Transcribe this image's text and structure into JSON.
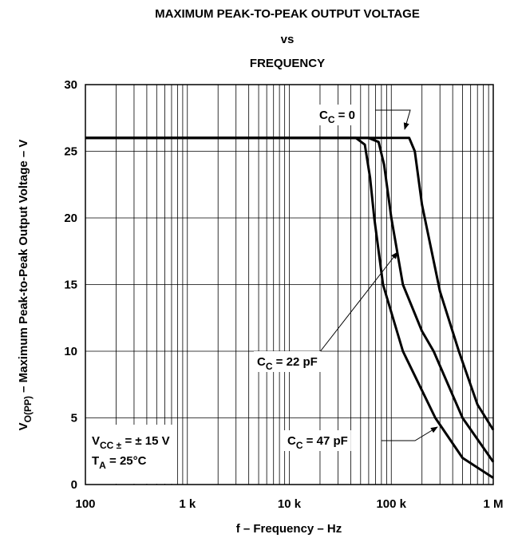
{
  "chart_data": {
    "type": "line",
    "title": [
      "MAXIMUM PEAK-TO-PEAK OUTPUT VOLTAGE",
      "vs",
      "FREQUENCY"
    ],
    "xlabel": "f – Frequency – Hz",
    "ylabel": {
      "base": "V",
      "sub": "O(PP)",
      "rest": " – Maximum Peak-to-Peak Output Voltage – V"
    },
    "xscale": "log",
    "xlim": [
      100,
      1000000
    ],
    "ylim": [
      0,
      30
    ],
    "xticks": [
      100,
      {
        "value": 1000,
        "label": "1 k"
      },
      {
        "value": 10000,
        "label": "10 k"
      },
      {
        "value": 100000,
        "label": "100 k"
      },
      {
        "value": 1000000,
        "label": "1 M"
      }
    ],
    "yticks": [
      0,
      5,
      10,
      15,
      20,
      25,
      30
    ],
    "grid": true,
    "series": [
      {
        "name": {
          "base": "C",
          "sub": "C",
          "rest": " = 0"
        },
        "color": "#000000",
        "x": [
          100,
          10000,
          100000,
          150000,
          170000,
          200000,
          300000,
          460000,
          700000,
          1000000
        ],
        "values": [
          26,
          26,
          26,
          26,
          25,
          21,
          14.5,
          10,
          6,
          4.1
        ]
      },
      {
        "name": {
          "base": "C",
          "sub": "C",
          "rest": " = 22 pF"
        },
        "color": "#000000",
        "x": [
          100,
          10000,
          60000,
          75000,
          85000,
          100000,
          130000,
          200000,
          260000,
          500000,
          1000000
        ],
        "values": [
          26,
          26,
          26,
          25.7,
          24,
          20,
          15,
          11.5,
          10,
          5,
          1.7
        ]
      },
      {
        "name": {
          "base": "C",
          "sub": "C",
          "rest": " = 47 pF"
        },
        "color": "#000000",
        "x": [
          100,
          10000,
          45000,
          55000,
          62000,
          68000,
          83000,
          130000,
          270000,
          500000,
          1000000
        ],
        "values": [
          26,
          26,
          26,
          25.5,
          23,
          20,
          15,
          10,
          5,
          2,
          0.5
        ]
      }
    ],
    "annotations": [
      {
        "base": "V",
        "sub": "CC ±",
        "rest": " = ± 15 V"
      },
      {
        "base": "T",
        "sub": "A",
        "rest": " = 25°C"
      }
    ]
  }
}
